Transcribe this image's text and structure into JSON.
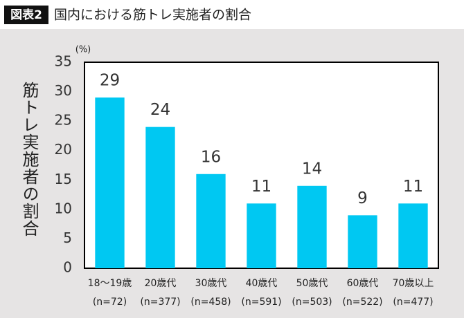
{
  "chart_data": {
    "type": "bar",
    "badge": "図表2",
    "title": "国内における筋トレ実施者の割合",
    "y_label": "筋トレ実施者の割合",
    "y_unit": "(%)",
    "categories": [
      "18〜19歳",
      "20歳代",
      "30歳代",
      "40歳代",
      "50歳代",
      "60歳代",
      "70歳以上"
    ],
    "category_notes": [
      "(n=72)",
      "(n=377)",
      "(n=458)",
      "(n=591)",
      "(n=503)",
      "(n=522)",
      "(n=477)"
    ],
    "values": [
      29,
      24,
      16,
      11,
      14,
      9,
      11
    ],
    "color": "#00c8f2",
    "ylim": [
      0,
      35
    ],
    "yticks": [
      0,
      5,
      10,
      15,
      20,
      25,
      30,
      35
    ],
    "grid": false
  }
}
